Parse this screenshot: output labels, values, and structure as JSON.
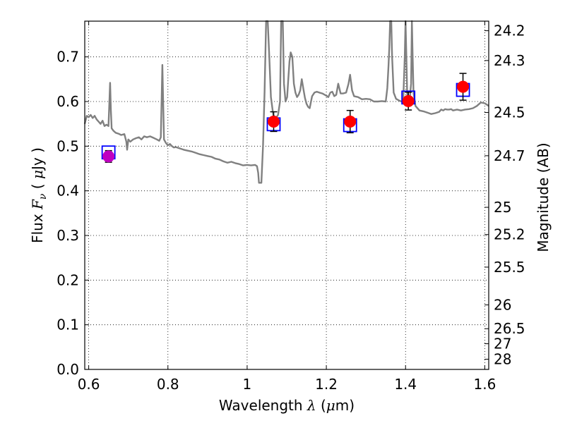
{
  "chart_data": {
    "type": "line",
    "xlabel": "Wavelength  λ (μm)",
    "ylabel": "Flux  Fν  ( μJy )",
    "ylabel_right": "Magnitude (AB)",
    "xlim": [
      0.59,
      1.61
    ],
    "ylim": [
      0.0,
      0.78
    ],
    "grid": true,
    "grid_style": "dotted",
    "x_ticks": [
      0.6,
      0.8,
      1.0,
      1.2,
      1.4,
      1.6
    ],
    "x_tick_labels": [
      "0.6",
      "0.8",
      "1",
      "1.2",
      "1.4",
      "1.6"
    ],
    "y_ticks": [
      0.0,
      0.1,
      0.2,
      0.3,
      0.4,
      0.5,
      0.6,
      0.7
    ],
    "y_tick_labels": [
      "0.0",
      "0.1",
      "0.2",
      "0.3",
      "0.4",
      "0.5",
      "0.6",
      "0.7"
    ],
    "right_ticks": [
      {
        "label": "24.2",
        "mag": 24.2
      },
      {
        "label": "24.3",
        "mag": 24.3
      },
      {
        "label": "24.5",
        "mag": 24.5
      },
      {
        "label": "24.7",
        "mag": 24.7
      },
      {
        "label": "25",
        "mag": 25.0
      },
      {
        "label": "25.2",
        "mag": 25.2
      },
      {
        "label": "25.5",
        "mag": 25.5
      },
      {
        "label": "26",
        "mag": 26.0
      },
      {
        "label": "26.5",
        "mag": 26.5
      },
      {
        "label": "27",
        "mag": 27.0
      },
      {
        "label": "28",
        "mag": 28.0
      }
    ],
    "model_spectrum": {
      "color": "#808080",
      "points": [
        [
          0.59,
          0.55
        ],
        [
          0.595,
          0.568
        ],
        [
          0.6,
          0.565
        ],
        [
          0.605,
          0.57
        ],
        [
          0.61,
          0.563
        ],
        [
          0.615,
          0.568
        ],
        [
          0.62,
          0.56
        ],
        [
          0.625,
          0.555
        ],
        [
          0.63,
          0.55
        ],
        [
          0.635,
          0.557
        ],
        [
          0.64,
          0.545
        ],
        [
          0.645,
          0.548
        ],
        [
          0.65,
          0.545
        ],
        [
          0.652,
          0.595
        ],
        [
          0.654,
          0.642
        ],
        [
          0.656,
          0.58
        ],
        [
          0.658,
          0.54
        ],
        [
          0.662,
          0.535
        ],
        [
          0.668,
          0.53
        ],
        [
          0.675,
          0.528
        ],
        [
          0.682,
          0.525
        ],
        [
          0.69,
          0.527
        ],
        [
          0.695,
          0.51
        ],
        [
          0.697,
          0.492
        ],
        [
          0.7,
          0.515
        ],
        [
          0.705,
          0.51
        ],
        [
          0.712,
          0.515
        ],
        [
          0.72,
          0.518
        ],
        [
          0.727,
          0.52
        ],
        [
          0.733,
          0.515
        ],
        [
          0.74,
          0.522
        ],
        [
          0.747,
          0.52
        ],
        [
          0.755,
          0.522
        ],
        [
          0.765,
          0.518
        ],
        [
          0.772,
          0.515
        ],
        [
          0.778,
          0.512
        ],
        [
          0.782,
          0.52
        ],
        [
          0.784,
          0.6
        ],
        [
          0.786,
          0.682
        ],
        [
          0.788,
          0.6
        ],
        [
          0.79,
          0.515
        ],
        [
          0.795,
          0.507
        ],
        [
          0.8,
          0.502
        ],
        [
          0.805,
          0.505
        ],
        [
          0.81,
          0.5
        ],
        [
          0.815,
          0.497
        ],
        [
          0.82,
          0.498
        ],
        [
          0.83,
          0.495
        ],
        [
          0.84,
          0.492
        ],
        [
          0.85,
          0.49
        ],
        [
          0.86,
          0.488
        ],
        [
          0.87,
          0.485
        ],
        [
          0.88,
          0.482
        ],
        [
          0.89,
          0.48
        ],
        [
          0.9,
          0.478
        ],
        [
          0.91,
          0.476
        ],
        [
          0.92,
          0.472
        ],
        [
          0.93,
          0.47
        ],
        [
          0.94,
          0.466
        ],
        [
          0.95,
          0.463
        ],
        [
          0.96,
          0.465
        ],
        [
          0.97,
          0.462
        ],
        [
          0.98,
          0.46
        ],
        [
          0.99,
          0.457
        ],
        [
          1.0,
          0.458
        ],
        [
          1.01,
          0.457
        ],
        [
          1.02,
          0.458
        ],
        [
          1.025,
          0.455
        ],
        [
          1.028,
          0.44
        ],
        [
          1.03,
          0.418
        ],
        [
          1.036,
          0.418
        ],
        [
          1.04,
          0.5
        ],
        [
          1.044,
          0.62
        ],
        [
          1.048,
          0.78
        ],
        [
          1.052,
          0.78
        ],
        [
          1.056,
          0.7
        ],
        [
          1.06,
          0.61
        ],
        [
          1.066,
          0.57
        ],
        [
          1.072,
          0.562
        ],
        [
          1.078,
          0.57
        ],
        [
          1.083,
          0.6
        ],
        [
          1.086,
          0.78
        ],
        [
          1.09,
          0.78
        ],
        [
          1.093,
          0.64
        ],
        [
          1.097,
          0.6
        ],
        [
          1.101,
          0.61
        ],
        [
          1.104,
          0.65
        ],
        [
          1.107,
          0.69
        ],
        [
          1.11,
          0.71
        ],
        [
          1.114,
          0.7
        ],
        [
          1.118,
          0.64
        ],
        [
          1.122,
          0.62
        ],
        [
          1.126,
          0.61
        ],
        [
          1.13,
          0.615
        ],
        [
          1.134,
          0.625
        ],
        [
          1.138,
          0.65
        ],
        [
          1.142,
          0.628
        ],
        [
          1.146,
          0.608
        ],
        [
          1.15,
          0.595
        ],
        [
          1.154,
          0.588
        ],
        [
          1.158,
          0.585
        ],
        [
          1.164,
          0.612
        ],
        [
          1.17,
          0.62
        ],
        [
          1.176,
          0.622
        ],
        [
          1.182,
          0.62
        ],
        [
          1.19,
          0.618
        ],
        [
          1.196,
          0.615
        ],
        [
          1.2,
          0.613
        ],
        [
          1.205,
          0.61
        ],
        [
          1.21,
          0.62
        ],
        [
          1.215,
          0.622
        ],
        [
          1.22,
          0.612
        ],
        [
          1.225,
          0.615
        ],
        [
          1.23,
          0.64
        ],
        [
          1.236,
          0.618
        ],
        [
          1.242,
          0.618
        ],
        [
          1.25,
          0.62
        ],
        [
          1.256,
          0.64
        ],
        [
          1.26,
          0.66
        ],
        [
          1.265,
          0.625
        ],
        [
          1.27,
          0.612
        ],
        [
          1.28,
          0.61
        ],
        [
          1.29,
          0.605
        ],
        [
          1.3,
          0.606
        ],
        [
          1.31,
          0.605
        ],
        [
          1.32,
          0.6
        ],
        [
          1.33,
          0.6
        ],
        [
          1.34,
          0.601
        ],
        [
          1.35,
          0.6
        ],
        [
          1.354,
          0.63
        ],
        [
          1.357,
          0.68
        ],
        [
          1.359,
          0.72
        ],
        [
          1.361,
          0.78
        ],
        [
          1.364,
          0.78
        ],
        [
          1.366,
          0.7
        ],
        [
          1.37,
          0.62
        ],
        [
          1.376,
          0.606
        ],
        [
          1.384,
          0.602
        ],
        [
          1.39,
          0.6
        ],
        [
          1.394,
          0.6
        ],
        [
          1.398,
          0.7
        ],
        [
          1.4,
          0.78
        ],
        [
          1.402,
          0.7
        ],
        [
          1.404,
          0.62
        ],
        [
          1.406,
          0.605
        ],
        [
          1.41,
          0.6
        ],
        [
          1.414,
          0.64
        ],
        [
          1.416,
          0.78
        ],
        [
          1.418,
          0.7
        ],
        [
          1.42,
          0.62
        ],
        [
          1.425,
          0.59
        ],
        [
          1.435,
          0.58
        ],
        [
          1.445,
          0.578
        ],
        [
          1.455,
          0.575
        ],
        [
          1.465,
          0.572
        ],
        [
          1.475,
          0.574
        ],
        [
          1.485,
          0.577
        ],
        [
          1.49,
          0.582
        ],
        [
          1.495,
          0.58
        ],
        [
          1.5,
          0.583
        ],
        [
          1.505,
          0.582
        ],
        [
          1.51,
          0.582
        ],
        [
          1.515,
          0.583
        ],
        [
          1.52,
          0.58
        ],
        [
          1.53,
          0.582
        ],
        [
          1.54,
          0.58
        ],
        [
          1.55,
          0.582
        ],
        [
          1.56,
          0.583
        ],
        [
          1.57,
          0.585
        ],
        [
          1.58,
          0.59
        ],
        [
          1.59,
          0.598
        ],
        [
          1.6,
          0.596
        ],
        [
          1.61,
          0.59
        ]
      ]
    },
    "observed": [
      {
        "x": 0.65,
        "y": 0.477,
        "yerr": 0.013,
        "color": "#c000c0"
      },
      {
        "x": 1.067,
        "y": 0.555,
        "yerr": 0.022,
        "color": "#ff0000"
      },
      {
        "x": 1.26,
        "y": 0.555,
        "yerr": 0.025,
        "color": "#ff0000"
      },
      {
        "x": 1.407,
        "y": 0.601,
        "yerr": 0.02,
        "color": "#ff0000"
      },
      {
        "x": 1.545,
        "y": 0.633,
        "yerr": 0.03,
        "color": "#ff0000"
      }
    ],
    "model_photometry": {
      "color": "#0000ff",
      "points": [
        [
          0.65,
          0.486
        ],
        [
          1.067,
          0.549
        ],
        [
          1.26,
          0.547
        ],
        [
          1.407,
          0.609
        ],
        [
          1.545,
          0.626
        ]
      ]
    }
  }
}
